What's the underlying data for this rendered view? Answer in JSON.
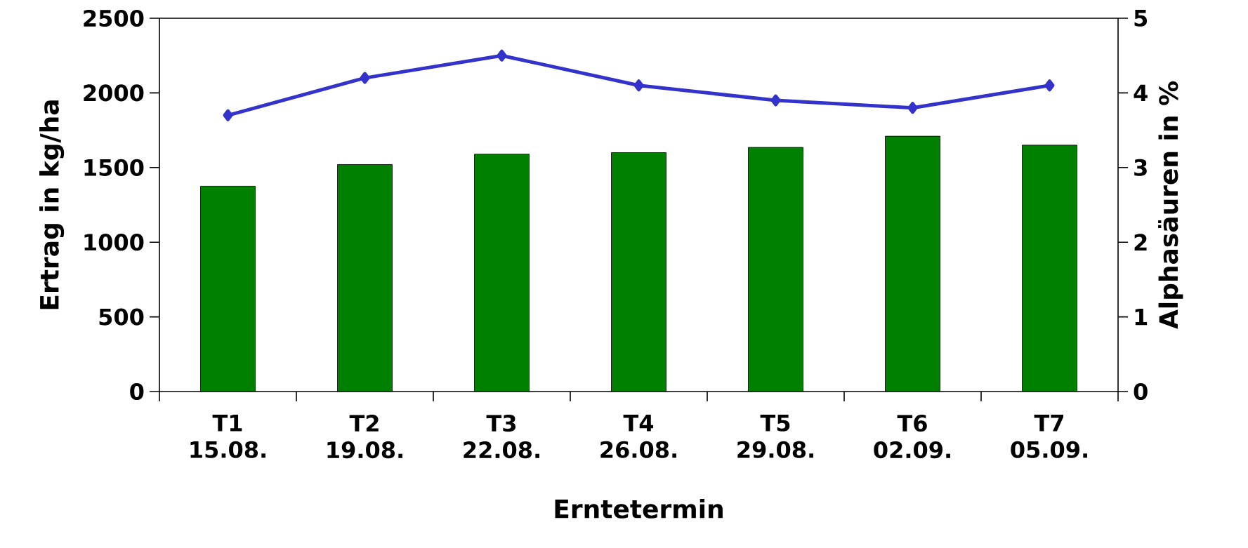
{
  "chart_data": {
    "type": "bar",
    "xlabel": "Erntetermin",
    "ylabel": "Ertrag in kg/ha",
    "y2label": "Alphasäuren in %",
    "categories": [
      "T1 15.08.",
      "T2 19.08.",
      "T3 22.08.",
      "T4 26.08.",
      "T5 29.08.",
      "T6 02.09.",
      "T7 05.09."
    ],
    "series": [
      {
        "color": "#008000",
        "values": [
          1375,
          1520,
          1590,
          1600,
          1635,
          1710,
          1650
        ]
      },
      {
        "type": "line",
        "axis": "y2",
        "color": "#3333cc",
        "marker": "diamond",
        "values": [
          3.7,
          4.2,
          4.5,
          4.1,
          3.9,
          3.8,
          4.1
        ]
      }
    ],
    "ylim": [
      0,
      2500
    ],
    "yticks": [
      0,
      500,
      1000,
      1500,
      2000,
      2500
    ],
    "y2lim": [
      0,
      5
    ],
    "y2ticks": [
      0,
      1,
      2,
      3,
      4,
      5
    ],
    "grid": false
  }
}
